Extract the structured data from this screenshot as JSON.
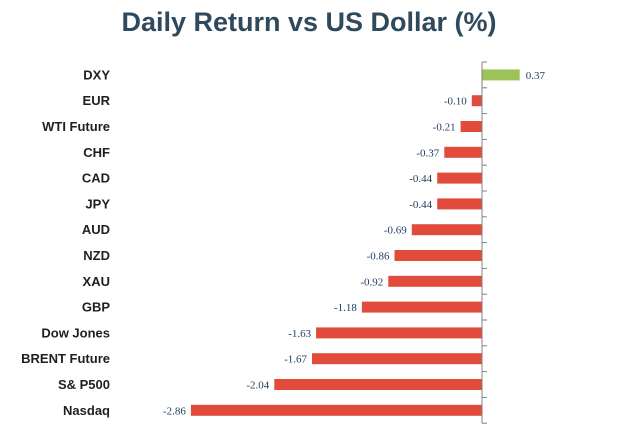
{
  "chart_data": {
    "type": "bar",
    "orientation": "horizontal",
    "title": "Daily Return vs US Dollar (%)",
    "xlabel": "",
    "ylabel": "",
    "categories": [
      "DXY",
      "EUR",
      "WTI Future",
      "CHF",
      "CAD",
      "JPY",
      "AUD",
      "NZD",
      "XAU",
      "GBP",
      "Dow Jones",
      "BRENT Future",
      "S& P500",
      "Nasdaq"
    ],
    "values": [
      0.37,
      -0.1,
      -0.21,
      -0.37,
      -0.44,
      -0.44,
      -0.69,
      -0.86,
      -0.92,
      -1.18,
      -1.63,
      -1.67,
      -2.04,
      -2.86
    ],
    "value_labels": [
      "0.37",
      "-0.10",
      "-0.21",
      "-0.37",
      "-0.44",
      "-0.44",
      "-0.69",
      "-0.86",
      "-0.92",
      "-1.18",
      "-1.63",
      "-1.67",
      "-2.04",
      "-2.86"
    ],
    "positive_color": "#9bc35a",
    "negative_color": "#e24b3b",
    "grid": false,
    "legend": "none"
  }
}
